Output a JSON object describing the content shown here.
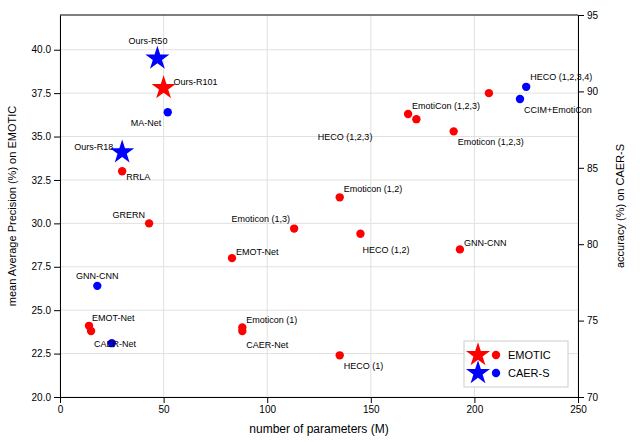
{
  "chart_data": {
    "type": "scatter",
    "xlabel": "number of parameters (M)",
    "ylabel": "mean Average Precision (%) on EMOTIC",
    "y2label": "accuracy (%) on CAER-S",
    "xlim": [
      0,
      250
    ],
    "xticks": [
      0,
      50,
      100,
      150,
      200,
      250
    ],
    "ylim": [
      20.0,
      42.0
    ],
    "yticks": [
      {
        "value": 20,
        "label": "20.0"
      },
      22.5,
      {
        "value": 25,
        "label": "25.0"
      },
      27.5,
      {
        "value": 30,
        "label": "30.0"
      },
      32.5,
      {
        "value": 35,
        "label": "35.0"
      },
      37.5,
      {
        "value": 40,
        "label": "40.0"
      }
    ],
    "y2lim": [
      70.0,
      95.0
    ],
    "y2ticks": [
      70,
      75,
      80,
      85,
      90,
      95
    ],
    "grid": true,
    "legend": "lower right",
    "series": [
      {
        "name": "EMOTIC",
        "color": "#FF0000",
        "x": [
          14,
          15,
          30,
          43,
          50,
          83,
          88,
          88,
          113,
          135,
          145,
          135,
          168,
          172,
          190,
          193,
          207
        ],
        "values": [
          24.1,
          23.8,
          33.0,
          30.0,
          37.8,
          28.0,
          24.0,
          23.8,
          29.7,
          31.5,
          29.4,
          22.4,
          36.3,
          36.0,
          35.3,
          28.5,
          37.5
        ],
        "markers": [
          "circle",
          "circle",
          "circle",
          "circle",
          "star",
          "circle",
          "circle",
          "circle",
          "circle",
          "circle",
          "circle",
          "circle",
          "circle",
          "circle",
          "circle",
          "circle",
          "circle"
        ],
        "labels": [
          "EMOT-Net",
          "CAER-Net",
          "RRLA",
          "GRERN",
          "Ours-R101",
          "EMOT-Net",
          "Emoticon (1)",
          "CAER-Net",
          "Emoticon (1,3)",
          "Emoticon (1,2)",
          "HECO (1,2)",
          "HECO (1)",
          "EmotiCon (1,2,3)",
          "HECO (1,2,3)",
          "Emoticon (1,2,3)",
          "GNN-CNN",
          null
        ]
      },
      {
        "name": "CAER-S",
        "color": "#0000FF",
        "x": [
          18,
          25,
          30,
          47,
          52
        ],
        "values": [
          26.4,
          23.1,
          34.1,
          39.5,
          36.4
        ],
        "markers": [
          "circle",
          "circle",
          "star",
          "star",
          "circle"
        ],
        "labels": [
          "GNN-CNN",
          null,
          "Ours-R18",
          "Ours-R50",
          "MA-Net"
        ]
      },
      {
        "name": "CAER-S",
        "color": "#0000FF",
        "axis": "y2",
        "x": [
          222,
          225
        ],
        "values": [
          89.5,
          90.3
        ],
        "markers": [
          "circle",
          "circle"
        ],
        "labels": [
          "CCIM+EmotiCon",
          "HECO (1,2,3,4)"
        ]
      }
    ]
  }
}
